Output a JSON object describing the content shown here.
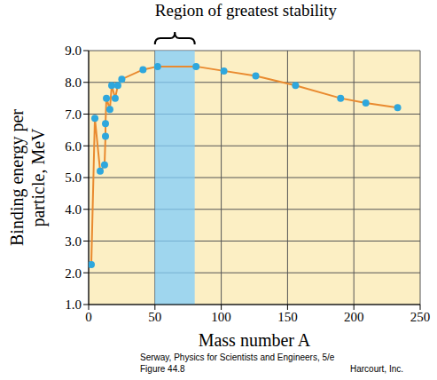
{
  "chart_data": {
    "type": "line",
    "xlabel": "Mass number A",
    "ylabel": [
      "Binding energy per",
      "particle, MeV"
    ],
    "x": [
      2,
      4.7,
      8.7,
      12,
      12.7,
      12.7,
      13.4,
      16,
      17.4,
      20,
      22,
      25,
      41,
      52,
      81,
      102,
      126,
      156,
      190,
      209,
      233
    ],
    "values": [
      2.26,
      6.87,
      5.2,
      5.4,
      6.3,
      6.7,
      7.5,
      7.15,
      7.9,
      7.5,
      7.9,
      8.1,
      8.4,
      8.5,
      8.5,
      8.36,
      8.2,
      7.9,
      7.5,
      7.35,
      7.2
    ],
    "color": "#e98a2f",
    "marker": "circle",
    "xlim": [
      0,
      250
    ],
    "xticks": [
      0,
      50,
      100,
      150,
      200,
      250
    ],
    "ylim": [
      1,
      9
    ],
    "yticks": [
      {
        "value": 1,
        "label": "1.0"
      },
      {
        "value": 2,
        "label": "2.0"
      },
      {
        "value": 3,
        "label": "3.0"
      },
      {
        "value": 4,
        "label": "4.0"
      },
      {
        "value": 5,
        "label": "5.0"
      },
      {
        "value": 6,
        "label": "6.0"
      },
      {
        "value": 7,
        "label": "7.0"
      },
      {
        "value": 8,
        "label": "8.0"
      },
      {
        "value": 9,
        "label": "9.0"
      }
    ],
    "grid": true,
    "annotations": [
      {
        "text": "Region of greatest stability",
        "x": [
          50,
          80
        ],
        "color": "#80cefc"
      }
    ],
    "caption": [
      "Serway, Physics for Scientists and Engineers, 5/e",
      "Figure 44.8",
      "Harcourt, Inc."
    ]
  }
}
